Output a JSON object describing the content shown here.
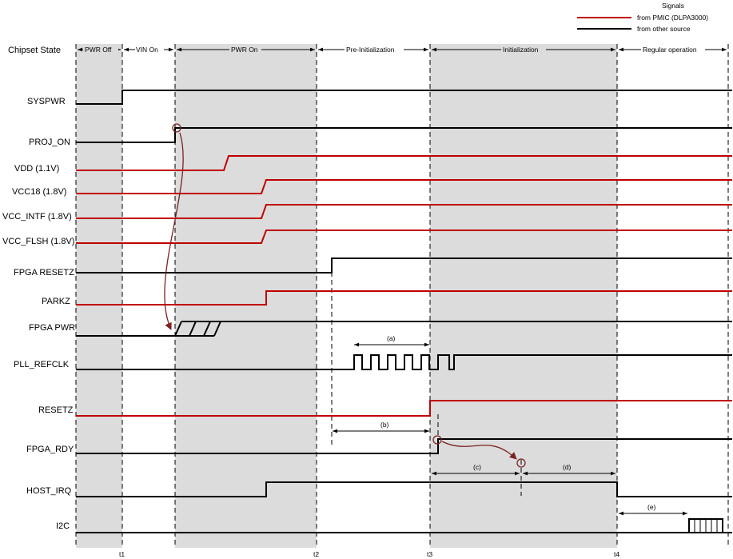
{
  "legend": {
    "title": "Signals",
    "red_label": "from PMIC (DLPA3000)",
    "black_label": "from other source",
    "red_color": "#c00000",
    "black_color": "#000000"
  },
  "chipset_state_label": "Chipset State",
  "states": [
    "PWR Off",
    "VIN On",
    "PWR On",
    "Pre-Initialization",
    "Initialization",
    "Regular operation"
  ],
  "time_markers": [
    "t1",
    "t2",
    "t3",
    "t4"
  ],
  "signals": [
    {
      "name": "SYSPWR",
      "color": "black"
    },
    {
      "name": "PROJ_ON",
      "color": "black"
    },
    {
      "name": "VDD (1.1V)",
      "color": "red"
    },
    {
      "name": "VCC18 (1.8V)",
      "color": "red"
    },
    {
      "name": "VCC_INTF (1.8V)",
      "color": "red"
    },
    {
      "name": "VCC_FLSH (1.8V)",
      "color": "red"
    },
    {
      "name": "FPGA RESETZ",
      "color": "black"
    },
    {
      "name": "PARKZ",
      "color": "red"
    },
    {
      "name": "FPGA PWR",
      "color": "black"
    },
    {
      "name": "PLL_REFCLK",
      "color": "black"
    },
    {
      "name": "RESETZ",
      "color": "red"
    },
    {
      "name": "FPGA_RDY",
      "color": "black"
    },
    {
      "name": "HOST_IRQ",
      "color": "black"
    },
    {
      "name": "I2C",
      "color": "black"
    }
  ],
  "intervals": [
    "(a)",
    "(b)",
    "(c)",
    "(d)",
    "(e)"
  ]
}
